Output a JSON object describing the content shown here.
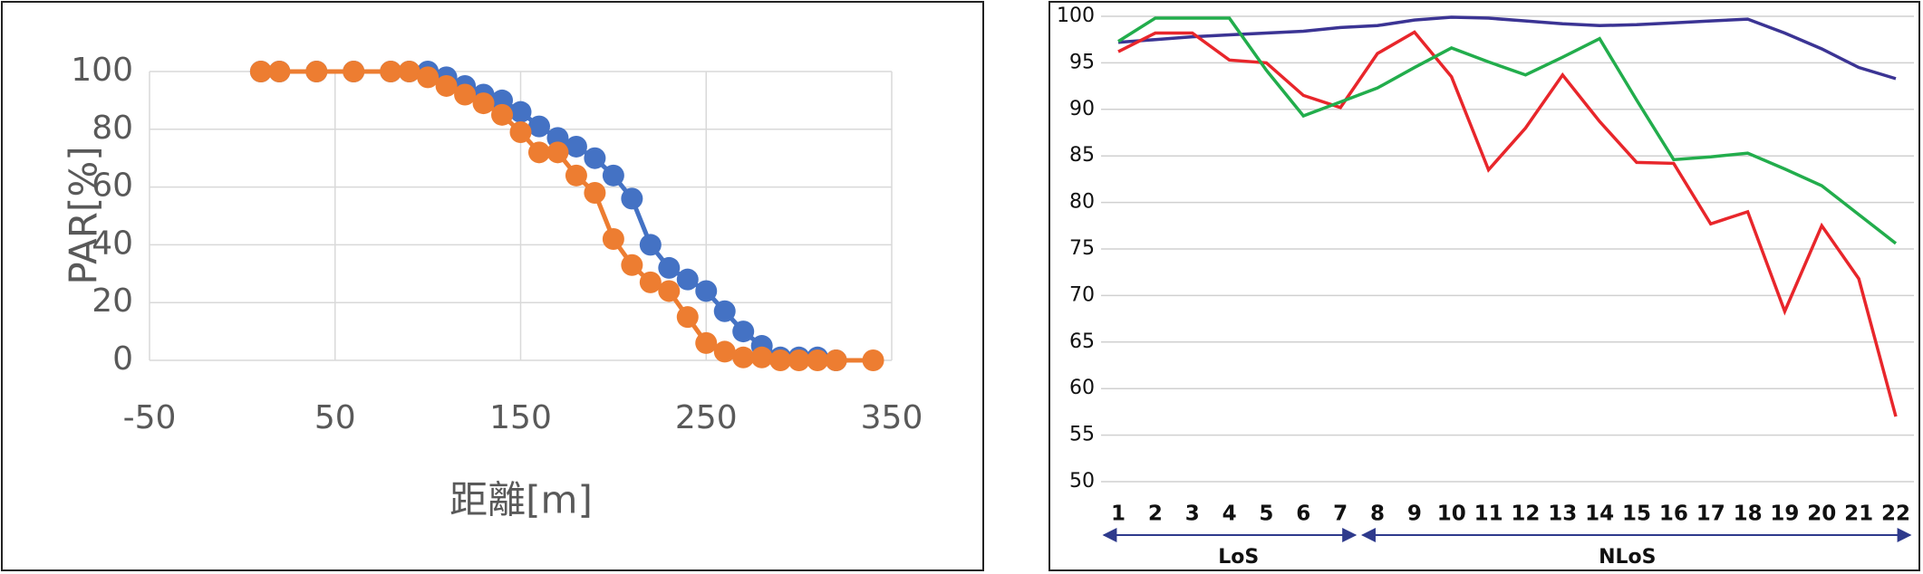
{
  "chart_data": [
    {
      "type": "scatter",
      "x_label": "距離[m]",
      "y_label": "PAR[%]",
      "xlim": [
        -50,
        350
      ],
      "xticks": [
        -50,
        50,
        150,
        250,
        350
      ],
      "ylim": [
        0,
        100
      ],
      "yticks": [
        0,
        20,
        40,
        60,
        80,
        100
      ],
      "grid": true,
      "series": [
        {
          "color": "#4472c4",
          "x": [
            10,
            20,
            40,
            60,
            80,
            90,
            100,
            110,
            120,
            130,
            140,
            150,
            160,
            170,
            180,
            190,
            200,
            210,
            220,
            230,
            240,
            250,
            260,
            270,
            280,
            290,
            300,
            310,
            320
          ],
          "values": [
            100,
            100,
            100,
            100,
            100,
            100,
            100,
            98,
            95,
            92,
            90,
            86,
            81,
            77,
            74,
            70,
            64,
            56,
            40,
            32,
            28,
            24,
            17,
            10,
            5,
            1,
            1,
            1,
            0
          ]
        },
        {
          "color": "#ed7d31",
          "x": [
            10,
            20,
            40,
            60,
            80,
            90,
            100,
            110,
            120,
            130,
            140,
            150,
            160,
            170,
            180,
            190,
            200,
            210,
            220,
            230,
            240,
            250,
            260,
            270,
            280,
            290,
            300,
            310,
            320,
            340
          ],
          "values": [
            100,
            100,
            100,
            100,
            100,
            100,
            98,
            95,
            92,
            89,
            85,
            79,
            72,
            72,
            64,
            58,
            42,
            33,
            27,
            24,
            15,
            6,
            3,
            1,
            1,
            0,
            0,
            0,
            0,
            0
          ]
        }
      ]
    },
    {
      "type": "line",
      "categories": [
        "1",
        "2",
        "3",
        "4",
        "5",
        "6",
        "7",
        "8",
        "9",
        "10",
        "11",
        "12",
        "13",
        "14",
        "15",
        "16",
        "17",
        "18",
        "19",
        "20",
        "21",
        "22"
      ],
      "ylim": [
        50,
        100
      ],
      "yticks": [
        50,
        55,
        60,
        65,
        70,
        75,
        80,
        85,
        90,
        95,
        100
      ],
      "grid": true,
      "annotations": [
        "LoS",
        "NLoS"
      ],
      "series": [
        {
          "color": "#3b3494",
          "values": [
            97.2,
            97.5,
            97.8,
            98,
            98.2,
            98.4,
            98.8,
            99,
            99.6,
            99.9,
            99.8,
            99.5,
            99.2,
            99,
            99.1,
            99.3,
            99.5,
            99.7,
            98.2,
            96.5,
            94.5,
            93.3
          ]
        },
        {
          "color": "#e8262b",
          "values": [
            96.2,
            98.2,
            98.2,
            95.3,
            95,
            91.5,
            90.2,
            96,
            98.3,
            93.5,
            83.5,
            88,
            93.7,
            88.7,
            84.3,
            84.2,
            77.7,
            79,
            68.3,
            77.5,
            71.8,
            57
          ]
        },
        {
          "color": "#22ad4c",
          "values": [
            97.3,
            99.8,
            99.8,
            99.8,
            94.2,
            89.3,
            90.8,
            92.3,
            94.5,
            96.6,
            95.1,
            93.7,
            95.6,
            97.6,
            91,
            84.6,
            84.9,
            85.3,
            83.6,
            81.8,
            78.7,
            75.6
          ]
        }
      ]
    }
  ]
}
